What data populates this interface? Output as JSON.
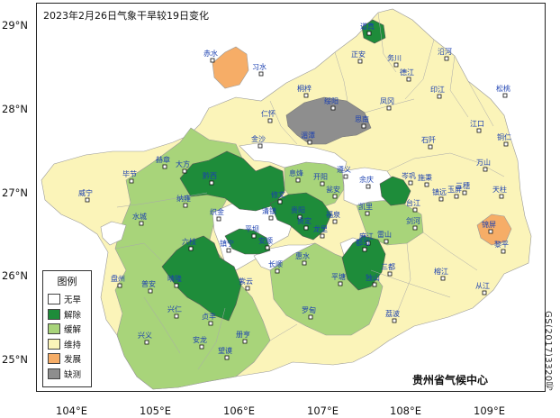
{
  "title": "2023年2月26日气象干旱较19日变化",
  "credit": "贵州省气候中心",
  "map_code": "GS(2017)3320号",
  "lat_labels": [
    "29°N",
    "28°N",
    "27°N",
    "26°N",
    "25°N"
  ],
  "lon_labels": [
    "104°E",
    "105°E",
    "106°E",
    "107°E",
    "108°E",
    "109°E"
  ],
  "legend": {
    "title": "图例",
    "items": [
      {
        "label": "无旱",
        "color": "#ffffff"
      },
      {
        "label": "解除",
        "color": "#1e8c3a"
      },
      {
        "label": "缓解",
        "color": "#a8d47a"
      },
      {
        "label": "维持",
        "color": "#fbf4b9"
      },
      {
        "label": "发展",
        "color": "#f6ad67"
      },
      {
        "label": "缺测",
        "color": "#8e8e8e"
      }
    ]
  },
  "stations": [
    "道真",
    "正安",
    "务川",
    "沿河",
    "赤水",
    "习水",
    "德江",
    "印江",
    "松桃",
    "桐梓",
    "绥阳",
    "凤冈",
    "思南",
    "江口",
    "铜仁",
    "仁怀",
    "湄潭",
    "石阡",
    "万山",
    "金沙",
    "遵义",
    "余庆",
    "岑巩",
    "玉屏",
    "毕节",
    "大方",
    "黔西",
    "息烽",
    "开阳",
    "瓮安",
    "施秉",
    "镇远",
    "三穗",
    "天柱",
    "威宁",
    "纳雍",
    "织金",
    "修文",
    "清镇",
    "贵阳",
    "福泉",
    "凯里",
    "台江",
    "剑河",
    "锦屏",
    "赫章",
    "水城",
    "六枝",
    "平坝",
    "安顺",
    "龙里",
    "贵定",
    "麻江",
    "雷山",
    "黎平",
    "盘州",
    "普安",
    "晴隆",
    "镇宁",
    "长顺",
    "惠水",
    "都匀",
    "三都",
    "榕江",
    "从江",
    "兴仁",
    "贞丰",
    "紫云",
    "罗甸",
    "平塘",
    "独山",
    "荔波",
    "兴义",
    "安龙",
    "册亨",
    "望谟"
  ]
}
